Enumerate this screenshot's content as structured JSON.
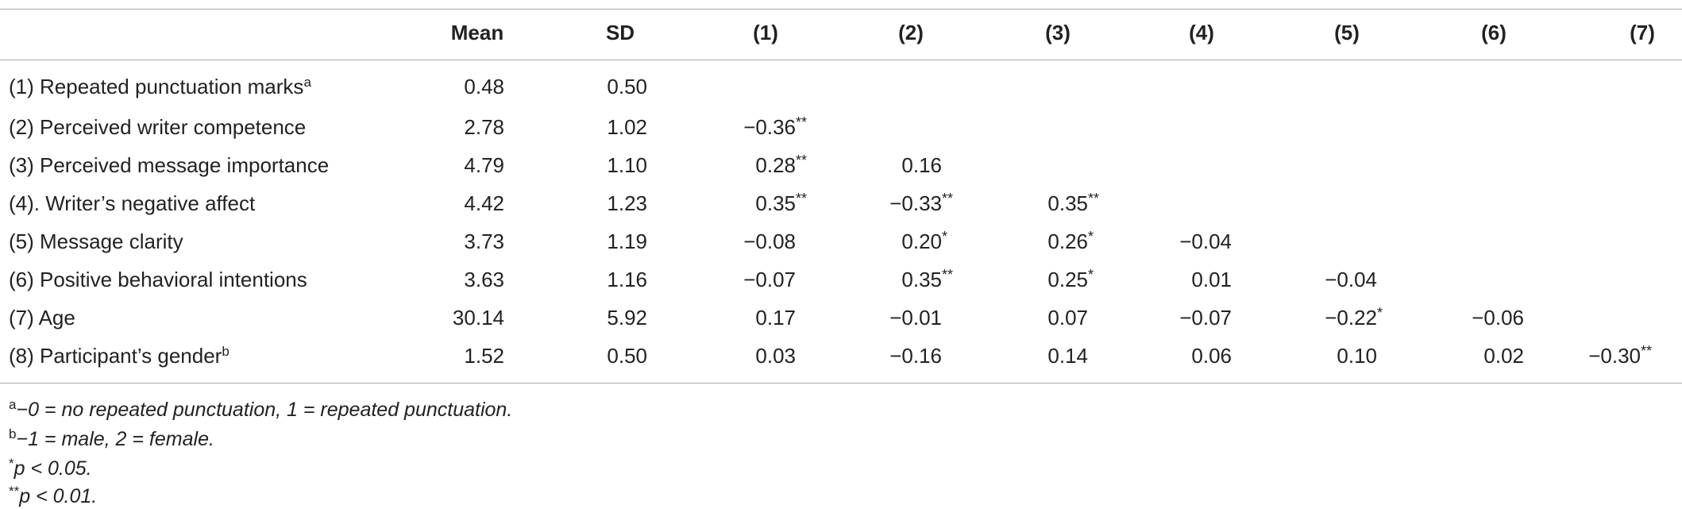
{
  "table": {
    "columns": [
      "Mean",
      "SD",
      "(1)",
      "(2)",
      "(3)",
      "(4)",
      "(5)",
      "(6)",
      "(7)"
    ],
    "rows": [
      {
        "label": "(1) Repeated punctuation marks",
        "note": "a",
        "cells": [
          "0.48",
          "0.50"
        ]
      },
      {
        "label": "(2) Perceived writer competence",
        "cells": [
          "2.78",
          "1.02",
          {
            "value": "−0.36",
            "mark": "**"
          }
        ]
      },
      {
        "label": "(3) Perceived message importance",
        "cells": [
          "4.79",
          "1.10",
          {
            "value": "0.28",
            "mark": "**"
          },
          "0.16"
        ]
      },
      {
        "label": "(4). Writer’s negative affect",
        "cells": [
          "4.42",
          "1.23",
          {
            "value": "0.35",
            "mark": "**"
          },
          {
            "value": "−0.33",
            "mark": "**"
          },
          {
            "value": "0.35",
            "mark": "**"
          }
        ]
      },
      {
        "label": "(5) Message clarity",
        "cells": [
          "3.73",
          "1.19",
          "−0.08",
          {
            "value": "0.20",
            "mark": "*"
          },
          {
            "value": "0.26",
            "mark": "*"
          },
          "−0.04"
        ]
      },
      {
        "label": "(6) Positive behavioral intentions",
        "cells": [
          "3.63",
          "1.16",
          "−0.07",
          {
            "value": "0.35",
            "mark": "**"
          },
          {
            "value": "0.25",
            "mark": "*"
          },
          "0.01",
          "−0.04"
        ]
      },
      {
        "label": "(7) Age",
        "cells": [
          "30.14",
          "5.92",
          "0.17",
          "−0.01",
          "0.07",
          "−0.07",
          {
            "value": "−0.22",
            "mark": "*"
          },
          "−0.06"
        ]
      },
      {
        "label": "(8) Participant’s gender",
        "note": "b",
        "cells": [
          "1.52",
          "0.50",
          "0.03",
          "−0.16",
          "0.14",
          "0.06",
          "0.10",
          "0.02",
          {
            "value": "−0.30",
            "mark": "**"
          }
        ]
      }
    ]
  },
  "footnotes": [
    {
      "marker": "a",
      "text": "−0 = no repeated punctuation, 1 = repeated punctuation."
    },
    {
      "marker": "b",
      "text": "−1 = male, 2 = female."
    },
    {
      "marker": "*",
      "text": "p < 0.05."
    },
    {
      "marker": "**",
      "text": "p < 0.01."
    }
  ]
}
